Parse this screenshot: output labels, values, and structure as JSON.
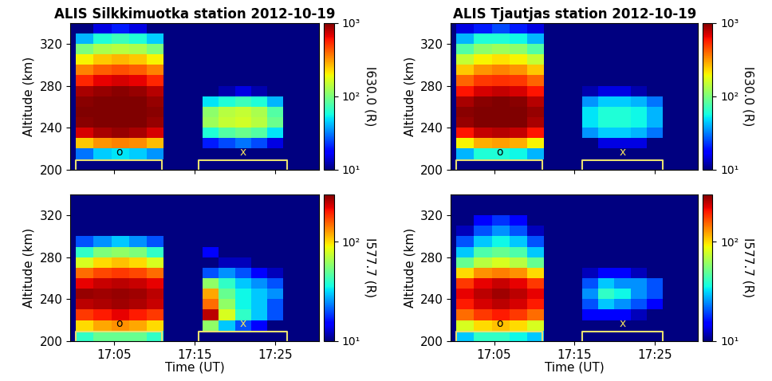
{
  "chart_data": [
    {
      "type": "heatmap",
      "title": "ALIS Silkkimuotka station 2012-10-19",
      "ylabel": "Altitude (km)",
      "xlim": [
        1019.6,
        1050.4
      ],
      "ylim": [
        200,
        340
      ],
      "xticks": [
        {
          "value": 1025,
          "label": "17:05"
        },
        {
          "value": 1035,
          "label": "17:15"
        },
        {
          "value": 1045,
          "label": "17:25"
        }
      ],
      "yticks": [
        200,
        240,
        280,
        320
      ],
      "tick_labels": "y",
      "x_edges": [
        1020.3,
        1022.5,
        1024.7,
        1026.9,
        1029.1,
        1031.2,
        1036,
        1038,
        1040,
        1042,
        1044,
        1046
      ],
      "y_edges": [
        200,
        210,
        220,
        230,
        240,
        250,
        260,
        270,
        280,
        290,
        300,
        310,
        320,
        330,
        340
      ],
      "cells": [
        [
          10,
          10,
          10,
          10,
          10,
          10,
          10,
          10,
          10,
          10,
          10
        ],
        [
          30,
          45,
          50,
          45,
          35,
          10,
          10,
          10,
          10,
          10,
          10
        ],
        [
          250,
          320,
          350,
          330,
          260,
          10,
          20,
          25,
          30,
          25,
          15
        ],
        [
          700,
          850,
          900,
          850,
          700,
          10,
          60,
          80,
          90,
          80,
          50
        ],
        [
          950,
          1000,
          1000,
          1000,
          900,
          10,
          120,
          150,
          160,
          140,
          90
        ],
        [
          1000,
          1000,
          1000,
          1000,
          950,
          10,
          110,
          140,
          150,
          130,
          80
        ],
        [
          950,
          1000,
          1000,
          1000,
          900,
          10,
          50,
          60,
          70,
          60,
          40
        ],
        [
          850,
          900,
          950,
          900,
          800,
          10,
          10,
          12,
          15,
          12,
          10
        ],
        [
          550,
          650,
          700,
          650,
          550,
          10,
          10,
          10,
          10,
          10,
          10
        ],
        [
          350,
          420,
          450,
          420,
          350,
          10,
          10,
          10,
          10,
          10,
          10
        ],
        [
          200,
          250,
          270,
          250,
          200,
          10,
          10,
          10,
          10,
          10,
          10
        ],
        [
          100,
          130,
          140,
          130,
          100,
          10,
          10,
          10,
          10,
          10,
          10
        ],
        [
          40,
          60,
          70,
          60,
          45,
          10,
          10,
          10,
          10,
          10,
          10
        ],
        [
          10,
          15,
          20,
          15,
          10,
          10,
          10,
          10,
          10,
          10,
          10
        ]
      ],
      "colorbar_range": [
        10,
        1000
      ],
      "colorbar_ticks": [
        {
          "value": 10,
          "label": "10¹"
        },
        {
          "value": 100,
          "label": "10²"
        },
        {
          "value": 1000,
          "label": "10³"
        }
      ],
      "colorbar_label": "I630.0 (R)",
      "intervals": [
        {
          "label": "o",
          "start": 1020.3,
          "end": 1031,
          "altitude": 209,
          "color": "#000000"
        },
        {
          "label": "x",
          "start": 1035.5,
          "end": 1046.5,
          "altitude": 209,
          "color": "#f0e060"
        }
      ]
    },
    {
      "type": "heatmap",
      "title": "ALIS Tjautjas station 2012-10-19",
      "ylabel": "Altitude (km)",
      "xlim": [
        1019.6,
        1050.4
      ],
      "ylim": [
        200,
        340
      ],
      "xticks": [
        {
          "value": 1025,
          "label": "17:05"
        },
        {
          "value": 1035,
          "label": "17:15"
        },
        {
          "value": 1045,
          "label": "17:25"
        }
      ],
      "yticks": [
        200,
        240,
        280,
        320
      ],
      "tick_labels": "y",
      "x_edges": [
        1020.3,
        1022.5,
        1024.7,
        1026.9,
        1029.1,
        1031.2,
        1036,
        1038,
        1040,
        1042,
        1044,
        1046
      ],
      "y_edges": [
        200,
        210,
        220,
        230,
        240,
        250,
        260,
        270,
        280,
        290,
        300,
        310,
        320,
        330,
        340
      ],
      "cells": [
        [
          10,
          10,
          10,
          10,
          10,
          10,
          10,
          10,
          10,
          10,
          10
        ],
        [
          40,
          60,
          60,
          55,
          40,
          10,
          10,
          10,
          10,
          10,
          10
        ],
        [
          200,
          280,
          300,
          280,
          200,
          10,
          10,
          15,
          15,
          15,
          10
        ],
        [
          600,
          750,
          800,
          750,
          600,
          10,
          35,
          45,
          45,
          40,
          30
        ],
        [
          900,
          1000,
          1000,
          1000,
          850,
          10,
          50,
          60,
          60,
          55,
          40
        ],
        [
          950,
          1000,
          1000,
          1000,
          900,
          10,
          50,
          60,
          60,
          55,
          40
        ],
        [
          850,
          950,
          1000,
          950,
          800,
          10,
          35,
          45,
          45,
          40,
          30
        ],
        [
          600,
          700,
          750,
          700,
          600,
          10,
          12,
          15,
          15,
          12,
          10
        ],
        [
          400,
          500,
          520,
          500,
          400,
          10,
          10,
          10,
          10,
          10,
          10
        ],
        [
          250,
          320,
          350,
          320,
          250,
          10,
          10,
          10,
          10,
          10,
          10
        ],
        [
          150,
          200,
          220,
          200,
          150,
          10,
          10,
          10,
          10,
          10,
          10
        ],
        [
          80,
          110,
          120,
          110,
          80,
          10,
          10,
          10,
          10,
          10,
          10
        ],
        [
          40,
          60,
          60,
          55,
          40,
          10,
          10,
          10,
          10,
          10,
          10
        ],
        [
          15,
          20,
          25,
          20,
          15,
          10,
          10,
          10,
          10,
          10,
          10
        ]
      ],
      "colorbar_range": [
        10,
        1000
      ],
      "colorbar_ticks": [
        {
          "value": 10,
          "label": "10¹"
        },
        {
          "value": 100,
          "label": "10²"
        },
        {
          "value": 1000,
          "label": "10³"
        }
      ],
      "colorbar_label": "I630.0 (R)",
      "intervals": [
        {
          "label": "o",
          "start": 1020.3,
          "end": 1031,
          "altitude": 209,
          "color": "#000000"
        },
        {
          "label": "x",
          "start": 1036,
          "end": 1046,
          "altitude": 209,
          "color": "#f0e060"
        }
      ]
    },
    {
      "type": "heatmap",
      "xlabel": "Time (UT)",
      "ylabel": "Altitude (km)",
      "xlim": [
        1019.6,
        1050.4
      ],
      "ylim": [
        200,
        340
      ],
      "xticks": [
        {
          "value": 1025,
          "label": "17:05"
        },
        {
          "value": 1035,
          "label": "17:15"
        },
        {
          "value": 1045,
          "label": "17:25"
        }
      ],
      "yticks": [
        200,
        240,
        280,
        320
      ],
      "x_edges": [
        1020.3,
        1022.5,
        1024.7,
        1026.9,
        1029.1,
        1031.2,
        1036,
        1038,
        1040,
        1042,
        1044,
        1046
      ],
      "y_edges": [
        200,
        210,
        220,
        230,
        240,
        250,
        260,
        270,
        280,
        290,
        300,
        310,
        320,
        330,
        340
      ],
      "cells": [
        [
          40,
          50,
          50,
          50,
          40,
          10,
          10,
          10,
          10,
          10,
          10
        ],
        [
          100,
          120,
          130,
          120,
          100,
          10,
          60,
          30,
          20,
          15,
          10
        ],
        [
          180,
          200,
          220,
          200,
          180,
          10,
          250,
          80,
          40,
          30,
          20
        ],
        [
          250,
          260,
          270,
          260,
          240,
          10,
          150,
          60,
          35,
          30,
          20
        ],
        [
          280,
          270,
          280,
          270,
          250,
          10,
          120,
          50,
          35,
          30,
          25
        ],
        [
          220,
          240,
          250,
          240,
          220,
          10,
          60,
          40,
          30,
          25,
          20
        ],
        [
          150,
          170,
          180,
          170,
          150,
          10,
          20,
          25,
          20,
          15,
          12
        ],
        [
          80,
          100,
          110,
          100,
          80,
          10,
          10,
          12,
          12,
          10,
          10
        ],
        [
          40,
          55,
          60,
          55,
          40,
          10,
          15,
          10,
          10,
          10,
          10
        ],
        [
          20,
          25,
          30,
          25,
          20,
          10,
          10,
          10,
          10,
          10,
          10
        ],
        [
          10,
          10,
          10,
          10,
          10,
          10,
          10,
          10,
          10,
          10,
          10
        ],
        [
          10,
          10,
          10,
          10,
          10,
          10,
          10,
          10,
          10,
          10,
          10
        ],
        [
          10,
          10,
          10,
          10,
          10,
          10,
          10,
          10,
          10,
          10,
          10
        ],
        [
          10,
          10,
          10,
          10,
          10,
          10,
          10,
          10,
          10,
          10,
          10
        ]
      ],
      "colorbar_range": [
        10,
        300
      ],
      "colorbar_ticks": [
        {
          "value": 10,
          "label": "10¹"
        },
        {
          "value": 100,
          "label": "10²"
        }
      ],
      "colorbar_label": "I577.7 (R)",
      "intervals": [
        {
          "label": "o",
          "start": 1020.3,
          "end": 1031,
          "altitude": 209,
          "color": "#000000"
        },
        {
          "label": "x",
          "start": 1035.5,
          "end": 1046.5,
          "altitude": 209,
          "color": "#f0e060"
        }
      ]
    },
    {
      "type": "heatmap",
      "xlabel": "Time (UT)",
      "ylabel": "Altitude (km)",
      "xlim": [
        1019.6,
        1050.4
      ],
      "ylim": [
        200,
        340
      ],
      "xticks": [
        {
          "value": 1025,
          "label": "17:05"
        },
        {
          "value": 1035,
          "label": "17:15"
        },
        {
          "value": 1045,
          "label": "17:25"
        }
      ],
      "yticks": [
        200,
        240,
        280,
        320
      ],
      "x_edges": [
        1020.3,
        1022.5,
        1024.7,
        1026.9,
        1029.1,
        1031.2,
        1036,
        1038,
        1040,
        1042,
        1044,
        1046
      ],
      "y_edges": [
        200,
        210,
        220,
        230,
        240,
        250,
        260,
        270,
        280,
        290,
        300,
        310,
        320,
        330,
        340
      ],
      "cells": [
        [
          30,
          40,
          40,
          35,
          30,
          10,
          10,
          10,
          10,
          10,
          10
        ],
        [
          80,
          100,
          110,
          100,
          80,
          10,
          10,
          10,
          10,
          10,
          10
        ],
        [
          150,
          180,
          200,
          180,
          150,
          10,
          15,
          15,
          15,
          12,
          10
        ],
        [
          200,
          230,
          250,
          230,
          200,
          10,
          20,
          30,
          25,
          20,
          15
        ],
        [
          220,
          250,
          270,
          250,
          220,
          10,
          25,
          40,
          35,
          25,
          20
        ],
        [
          180,
          220,
          240,
          220,
          180,
          10,
          20,
          30,
          25,
          25,
          20
        ],
        [
          100,
          130,
          140,
          130,
          100,
          10,
          12,
          15,
          15,
          12,
          10
        ],
        [
          50,
          70,
          80,
          70,
          50,
          10,
          10,
          10,
          10,
          10,
          10
        ],
        [
          30,
          45,
          50,
          45,
          30,
          10,
          10,
          10,
          10,
          10,
          10
        ],
        [
          20,
          30,
          35,
          30,
          20,
          10,
          10,
          10,
          10,
          10,
          10
        ],
        [
          12,
          20,
          25,
          20,
          12,
          10,
          10,
          10,
          10,
          10,
          10
        ],
        [
          10,
          15,
          18,
          15,
          10,
          10,
          10,
          10,
          10,
          10,
          10
        ],
        [
          10,
          10,
          10,
          10,
          10,
          10,
          10,
          10,
          10,
          10,
          10
        ],
        [
          10,
          10,
          10,
          10,
          10,
          10,
          10,
          10,
          10,
          10,
          10
        ]
      ],
      "colorbar_range": [
        10,
        300
      ],
      "colorbar_ticks": [
        {
          "value": 10,
          "label": "10¹"
        },
        {
          "value": 100,
          "label": "10²"
        }
      ],
      "colorbar_label": "I577.7 (R)",
      "intervals": [
        {
          "label": "o",
          "start": 1020.3,
          "end": 1031,
          "altitude": 209,
          "color": "#000000"
        },
        {
          "label": "x",
          "start": 1036,
          "end": 1046,
          "altitude": 209,
          "color": "#f0e060"
        }
      ]
    }
  ]
}
